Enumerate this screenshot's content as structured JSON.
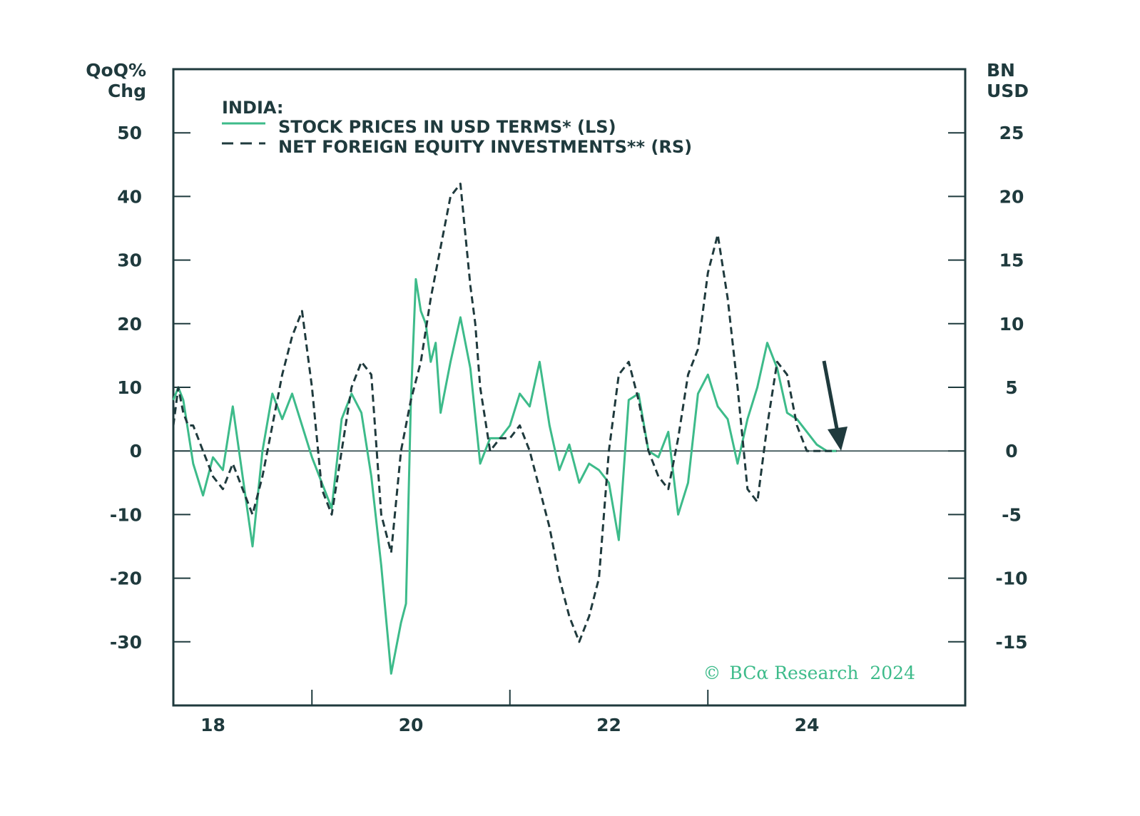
{
  "colors": {
    "stock": "#3dbb8a",
    "investment": "#1f3a3d",
    "axis": "#1f3a3d",
    "credit": "#3dbb8a"
  },
  "chart_data": {
    "type": "line",
    "title": "INDIA:",
    "left_axis": {
      "label_line1": "QoQ%",
      "label_line2": "Chg",
      "range": [
        -40,
        60
      ],
      "ticks": [
        50,
        40,
        30,
        20,
        10,
        0,
        -10,
        -20,
        -30
      ]
    },
    "right_axis": {
      "label_line1": "BN",
      "label_line2": "USD",
      "range": [
        -20,
        30
      ],
      "ticks": [
        25,
        20,
        15,
        10,
        5,
        0,
        -5,
        -10,
        -15
      ]
    },
    "x_axis": {
      "range": [
        2017.6,
        2025.6
      ],
      "ticks": [
        2018,
        2020,
        2022,
        2024
      ],
      "tick_labels": [
        "18",
        "20",
        "22",
        "24"
      ],
      "major_ticks": [
        2019,
        2021,
        2023
      ]
    },
    "zero_line": true,
    "annotation": {
      "type": "down-arrow",
      "meaning": "expected decline"
    },
    "series": [
      {
        "name": "STOCK PRICES IN USD TERMS* (LS)",
        "axis": "left",
        "style": "solid",
        "x": [
          2017.6,
          2017.65,
          2017.7,
          2017.8,
          2017.9,
          2018.0,
          2018.1,
          2018.2,
          2018.3,
          2018.4,
          2018.5,
          2018.6,
          2018.7,
          2018.8,
          2018.9,
          2019.0,
          2019.1,
          2019.2,
          2019.3,
          2019.4,
          2019.5,
          2019.6,
          2019.7,
          2019.8,
          2019.9,
          2019.95,
          2020.0,
          2020.05,
          2020.1,
          2020.15,
          2020.2,
          2020.25,
          2020.3,
          2020.4,
          2020.5,
          2020.6,
          2020.7,
          2020.8,
          2020.9,
          2021.0,
          2021.1,
          2021.2,
          2021.3,
          2021.4,
          2021.5,
          2021.6,
          2021.7,
          2021.8,
          2021.9,
          2022.0,
          2022.1,
          2022.2,
          2022.3,
          2022.4,
          2022.5,
          2022.6,
          2022.7,
          2022.8,
          2022.9,
          2023.0,
          2023.1,
          2023.2,
          2023.3,
          2023.4,
          2023.5,
          2023.6,
          2023.7,
          2023.8,
          2023.9,
          2024.0,
          2024.1,
          2024.2,
          2024.3
        ],
        "values": [
          8,
          10,
          8,
          -2,
          -7,
          -1,
          -3,
          7,
          -4,
          -15,
          0,
          9,
          5,
          9,
          4,
          -1,
          -5,
          -9,
          5,
          9,
          6,
          -4,
          -18,
          -35,
          -27,
          -24,
          8,
          27,
          22,
          20,
          14,
          17,
          6,
          14,
          21,
          13,
          -2,
          2,
          2,
          4,
          9,
          7,
          14,
          4,
          -3,
          1,
          -5,
          -2,
          -3,
          -5,
          -14,
          8,
          9,
          0,
          -1,
          3,
          -10,
          -5,
          9,
          12,
          7,
          5,
          -2,
          5,
          10,
          17,
          13,
          6,
          5,
          3,
          1,
          0,
          0
        ]
      },
      {
        "name": "NET FOREIGN EQUITY INVESTMENTS** (RS)",
        "axis": "right",
        "style": "dashed",
        "x": [
          2017.6,
          2017.65,
          2017.7,
          2017.75,
          2017.8,
          2017.9,
          2018.0,
          2018.1,
          2018.2,
          2018.3,
          2018.4,
          2018.5,
          2018.6,
          2018.7,
          2018.8,
          2018.9,
          2019.0,
          2019.1,
          2019.2,
          2019.3,
          2019.4,
          2019.5,
          2019.6,
          2019.7,
          2019.8,
          2019.9,
          2020.0,
          2020.1,
          2020.2,
          2020.3,
          2020.4,
          2020.5,
          2020.6,
          2020.65,
          2020.7,
          2020.8,
          2020.9,
          2021.0,
          2021.1,
          2021.2,
          2021.3,
          2021.4,
          2021.5,
          2021.6,
          2021.7,
          2021.8,
          2021.9,
          2022.0,
          2022.1,
          2022.2,
          2022.3,
          2022.4,
          2022.5,
          2022.6,
          2022.7,
          2022.8,
          2022.9,
          2023.0,
          2023.1,
          2023.2,
          2023.3,
          2023.4,
          2023.5,
          2023.6,
          2023.7,
          2023.8,
          2023.9,
          2024.0,
          2024.1,
          2024.2,
          2024.3
        ],
        "values": [
          2,
          5,
          3,
          2,
          2,
          0,
          -2,
          -3,
          -1,
          -3,
          -5,
          -2,
          2,
          6,
          9,
          11,
          5,
          -3,
          -5,
          0,
          5,
          7,
          6,
          -5,
          -8,
          0,
          4,
          7,
          12,
          16,
          20,
          21,
          13,
          10,
          5,
          0,
          1,
          1,
          2,
          0,
          -3,
          -6,
          -10,
          -13,
          -15,
          -13,
          -10,
          0,
          6,
          7,
          4,
          0,
          -2,
          -3,
          1,
          6,
          8,
          14,
          17,
          12,
          5,
          -3,
          -4,
          2,
          7,
          6,
          2,
          0,
          0,
          0,
          0
        ]
      }
    ]
  },
  "credit": {
    "symbol": "©",
    "text_main": "BCα Research",
    "text_year": "2024"
  }
}
